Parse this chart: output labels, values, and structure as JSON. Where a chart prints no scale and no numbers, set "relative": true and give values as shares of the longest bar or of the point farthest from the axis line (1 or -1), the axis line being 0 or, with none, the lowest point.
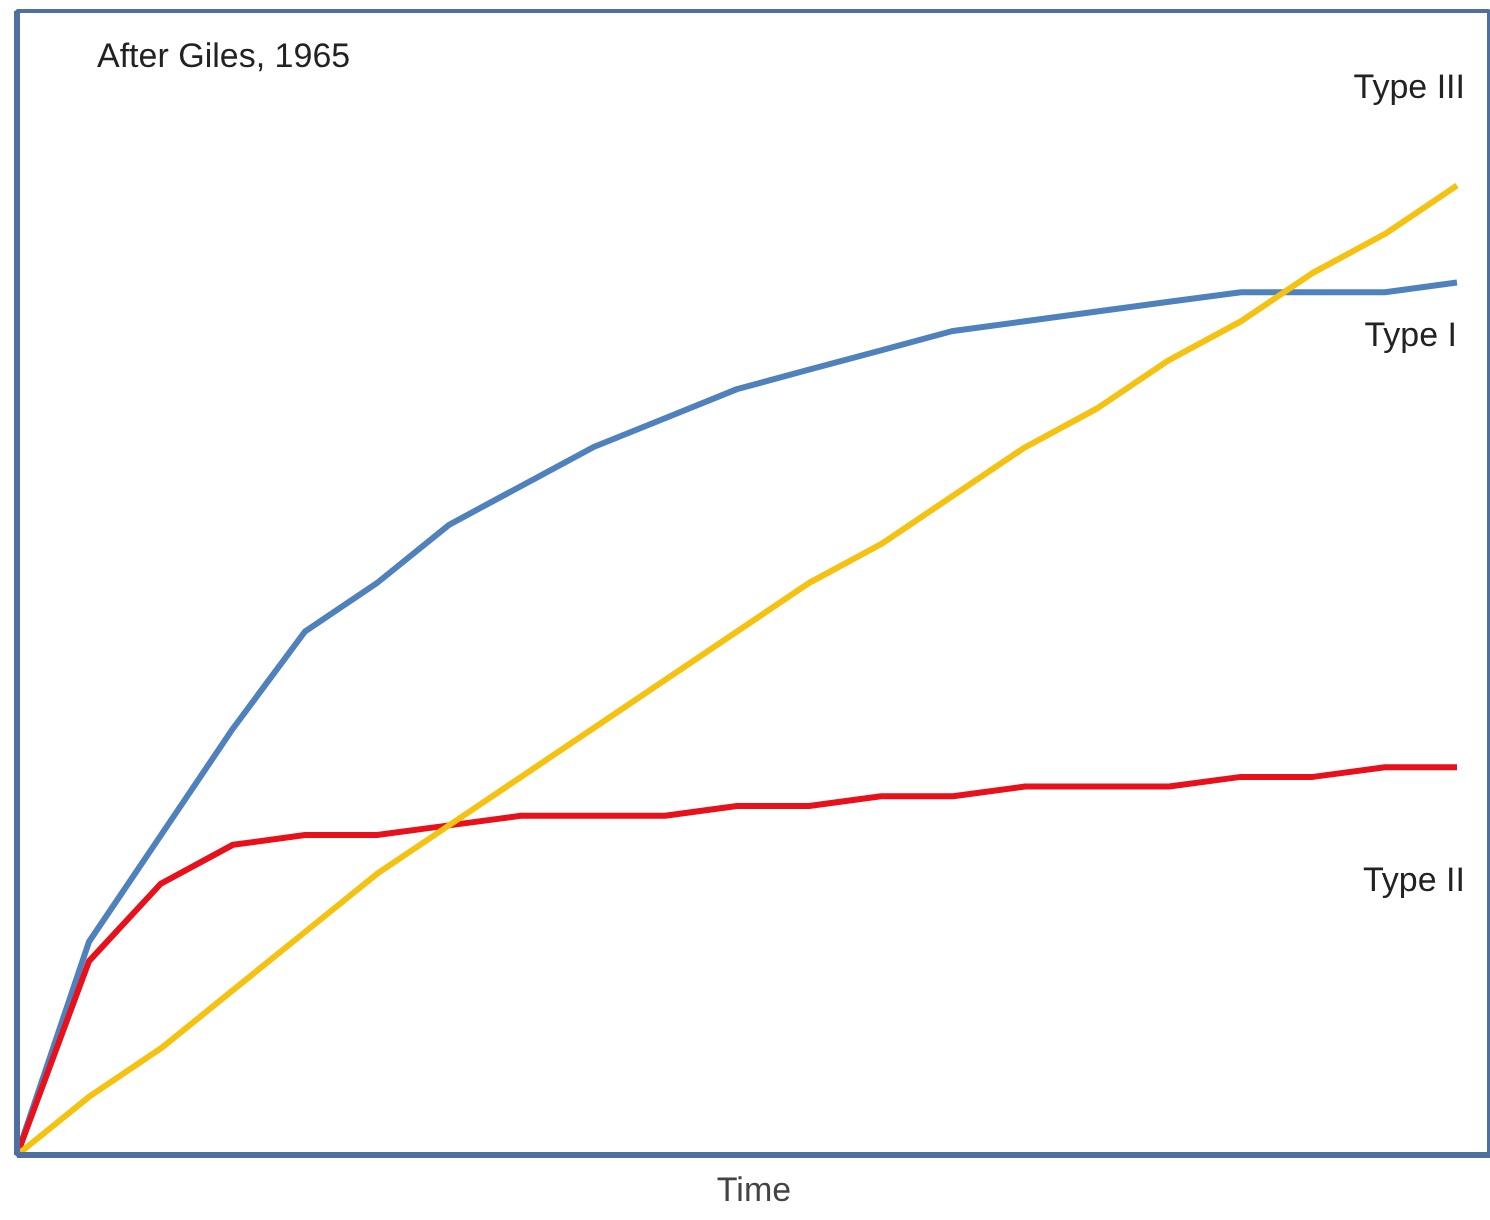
{
  "chart_data": {
    "type": "line",
    "relative": true,
    "xlabel": "Time",
    "annotations": [
      "After Giles, 1965"
    ],
    "categories": [
      null,
      null,
      null,
      null,
      null,
      null,
      null,
      null,
      null,
      null,
      null,
      null,
      null,
      null,
      null,
      null,
      null,
      null,
      null,
      null,
      null
    ],
    "marker": "none",
    "line_style": "solid",
    "series": [
      {
        "name": "Type I",
        "color": "#4f81bd",
        "values": [
          0,
          0.22,
          0.33,
          0.44,
          0.54,
          0.59,
          0.65,
          0.69,
          0.73,
          0.76,
          0.79,
          0.81,
          0.83,
          0.85,
          0.86,
          0.87,
          0.88,
          0.89,
          0.89,
          0.89,
          0.9
        ]
      },
      {
        "name": "Type II",
        "color": "#e8101a",
        "values": [
          0,
          0.2,
          0.28,
          0.32,
          0.33,
          0.33,
          0.34,
          0.35,
          0.35,
          0.35,
          0.36,
          0.36,
          0.37,
          0.37,
          0.38,
          0.38,
          0.38,
          0.39,
          0.39,
          0.4,
          0.4
        ]
      },
      {
        "name": "Type III",
        "color": "#f5c211",
        "values": [
          0,
          0.06,
          0.11,
          0.17,
          0.23,
          0.29,
          0.34,
          0.39,
          0.44,
          0.49,
          0.54,
          0.59,
          0.63,
          0.68,
          0.73,
          0.77,
          0.82,
          0.86,
          0.91,
          0.95,
          1.0
        ]
      }
    ]
  }
}
